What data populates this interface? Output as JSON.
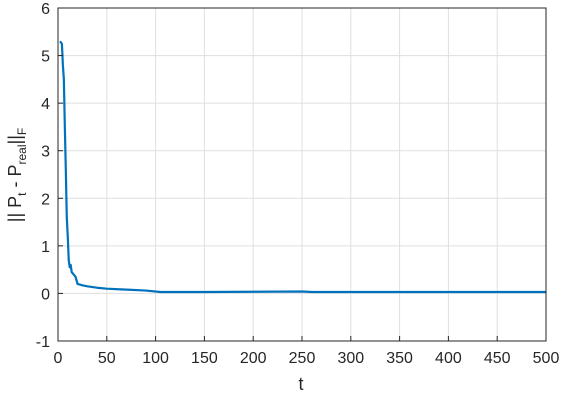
{
  "chart_data": {
    "type": "line",
    "xlabel": "t",
    "ylabel": [
      "|| P",
      "t",
      " - P",
      "real",
      "||",
      "F"
    ],
    "x": [
      2,
      4,
      5,
      6,
      7,
      8,
      9,
      10,
      11,
      12,
      13,
      14,
      16,
      18,
      20,
      25,
      30,
      40,
      50,
      70,
      90,
      105,
      150,
      250,
      260,
      500
    ],
    "series": [
      {
        "color": "#0072bd",
        "values": [
          5.3,
          5.25,
          4.8,
          4.5,
          3.5,
          2.6,
          1.6,
          1.2,
          0.7,
          0.55,
          0.6,
          0.45,
          0.4,
          0.35,
          0.2,
          0.17,
          0.15,
          0.12,
          0.1,
          0.08,
          0.06,
          0.03,
          0.03,
          0.04,
          0.03,
          0.03
        ]
      }
    ],
    "xlim": [
      0,
      500
    ],
    "ylim": [
      -1,
      6
    ],
    "xticks": [
      0,
      50,
      100,
      150,
      200,
      250,
      300,
      350,
      400,
      450,
      500
    ],
    "yticks": [
      -1,
      0,
      1,
      2,
      3,
      4,
      5,
      6
    ],
    "grid": true
  }
}
